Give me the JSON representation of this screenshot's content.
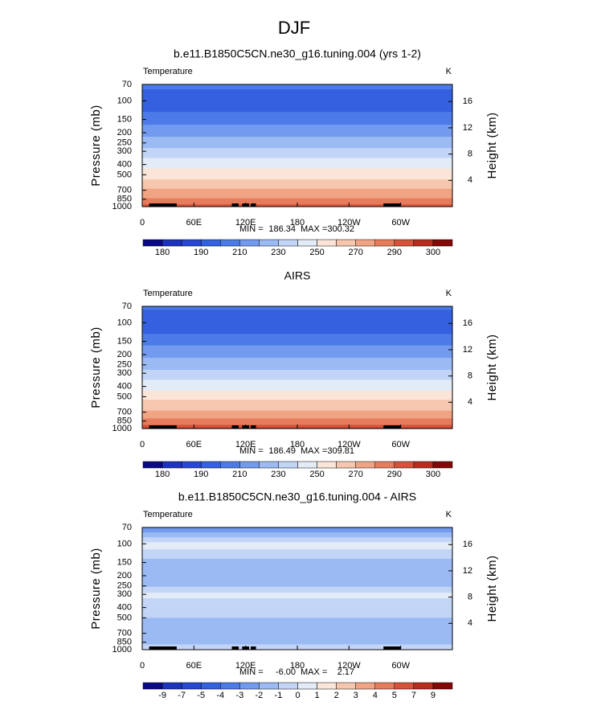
{
  "title": "DJF",
  "chart_data": [
    {
      "type": "contour",
      "title": "b.e11.B1850C5CN.ne30_g16.tuning.004 (yrs 1-2)",
      "label": "Temperature",
      "units": "K",
      "ylabel": "Pressure (mb)",
      "y2label": "Height (km)",
      "ylim": [
        70,
        1000
      ],
      "yscale": "log",
      "yticks": [
        70,
        100,
        150,
        200,
        250,
        300,
        400,
        500,
        700,
        850,
        1000
      ],
      "y2lim": [
        18.6,
        0
      ],
      "y2ticks": [
        4,
        8,
        12,
        16
      ],
      "xlim": [
        0,
        360
      ],
      "xticks": [
        0,
        {
          "value": 60,
          "label": "60E"
        },
        {
          "value": 120,
          "label": "120E"
        },
        180,
        {
          "value": 240,
          "label": "120W"
        },
        {
          "value": 300,
          "label": "60W"
        }
      ],
      "profile": {
        "pressure": [
          70,
          100,
          150,
          200,
          250,
          300,
          400,
          500,
          700,
          850,
          1000
        ],
        "values": [
          203,
          192,
          206,
          216,
          225,
          233,
          246,
          256,
          271,
          281,
          293
        ]
      },
      "stats": {
        "min_label": "MIN =",
        "min": 186.34,
        "max_label": "MAX =",
        "max": 300.32
      },
      "colorbar": {
        "levels": [
          180,
          185,
          190,
          200,
          210,
          220,
          230,
          240,
          250,
          260,
          270,
          280,
          290,
          295,
          300
        ],
        "label_every": 2,
        "colors": [
          "#0a0a86",
          "#1c33bd",
          "#2747d4",
          "#3461df",
          "#4c7be8",
          "#729aef",
          "#9bbaf4",
          "#c2d5f7",
          "#e3ebf7",
          "#fbe5d8",
          "#f6c7ae",
          "#f0a483",
          "#e77c5c",
          "#d6533a",
          "#b92d1e",
          "#850808"
        ]
      }
    },
    {
      "type": "contour",
      "title": "AIRS",
      "label": "Temperature",
      "units": "K",
      "ylabel": "Pressure (mb)",
      "y2label": "Height (km)",
      "ylim": [
        70,
        1000
      ],
      "yscale": "log",
      "yticks": [
        70,
        100,
        150,
        200,
        250,
        300,
        400,
        500,
        700,
        850,
        1000
      ],
      "y2lim": [
        18.6,
        0
      ],
      "y2ticks": [
        4,
        8,
        12,
        16
      ],
      "xlim": [
        0,
        360
      ],
      "xticks": [
        0,
        {
          "value": 60,
          "label": "60E"
        },
        {
          "value": 120,
          "label": "120E"
        },
        180,
        {
          "value": 240,
          "label": "120W"
        },
        {
          "value": 300,
          "label": "60W"
        }
      ],
      "profile": {
        "pressure": [
          70,
          100,
          150,
          200,
          250,
          300,
          400,
          500,
          700,
          850,
          1000
        ],
        "values": [
          202,
          191,
          207,
          217,
          226,
          233,
          246,
          257,
          272,
          283,
          296
        ]
      },
      "stats": {
        "min_label": "MIN =",
        "min": 186.49,
        "max_label": "MAX =",
        "max": 309.81
      },
      "colorbar": {
        "levels": [
          180,
          185,
          190,
          200,
          210,
          220,
          230,
          240,
          250,
          260,
          270,
          280,
          290,
          295,
          300
        ],
        "label_every": 2,
        "colors": [
          "#0a0a86",
          "#1c33bd",
          "#2747d4",
          "#3461df",
          "#4c7be8",
          "#729aef",
          "#9bbaf4",
          "#c2d5f7",
          "#e3ebf7",
          "#fbe5d8",
          "#f6c7ae",
          "#f0a483",
          "#e77c5c",
          "#d6533a",
          "#b92d1e",
          "#850808"
        ]
      }
    },
    {
      "type": "contour",
      "title": "b.e11.B1850C5CN.ne30_g16.tuning.004 - AIRS",
      "label": "Temperature",
      "units": "K",
      "ylabel": "Pressure (mb)",
      "y2label": "Height (km)",
      "ylim": [
        70,
        1000
      ],
      "yscale": "log",
      "yticks": [
        70,
        100,
        150,
        200,
        250,
        300,
        400,
        500,
        700,
        850,
        1000
      ],
      "y2lim": [
        18.6,
        0
      ],
      "y2ticks": [
        4,
        8,
        12,
        16
      ],
      "xlim": [
        0,
        360
      ],
      "xticks": [
        0,
        {
          "value": 60,
          "label": "60E"
        },
        {
          "value": 120,
          "label": "120E"
        },
        180,
        {
          "value": 240,
          "label": "120W"
        },
        {
          "value": 300,
          "label": "60W"
        }
      ],
      "profile": {
        "pressure": [
          70,
          100,
          150,
          200,
          250,
          300,
          400,
          500,
          700,
          850,
          1000
        ],
        "values": [
          -3,
          0.5,
          -1.5,
          -2,
          -1.2,
          0.3,
          -0.8,
          -1,
          -2,
          -1.5,
          0.2
        ]
      },
      "stats": {
        "min_label": "MIN =",
        "min": {
          "value": -6,
          "label": "-6.00"
        },
        "max_label": "MAX =",
        "max": 2.17
      },
      "colorbar": {
        "levels": [
          -9,
          -7,
          -5,
          -4,
          -3,
          -2,
          -1,
          0,
          1,
          2,
          3,
          4,
          5,
          7,
          9
        ],
        "label_every": 1,
        "colors": [
          "#0a0a86",
          "#1c33bd",
          "#2747d4",
          "#3461df",
          "#4c7be8",
          "#729aef",
          "#9bbaf4",
          "#c2d5f7",
          "#e3ebf7",
          "#fbe5d8",
          "#f6c7ae",
          "#f0a483",
          "#e77c5c",
          "#d6533a",
          "#b92d1e",
          "#850808"
        ]
      }
    }
  ]
}
